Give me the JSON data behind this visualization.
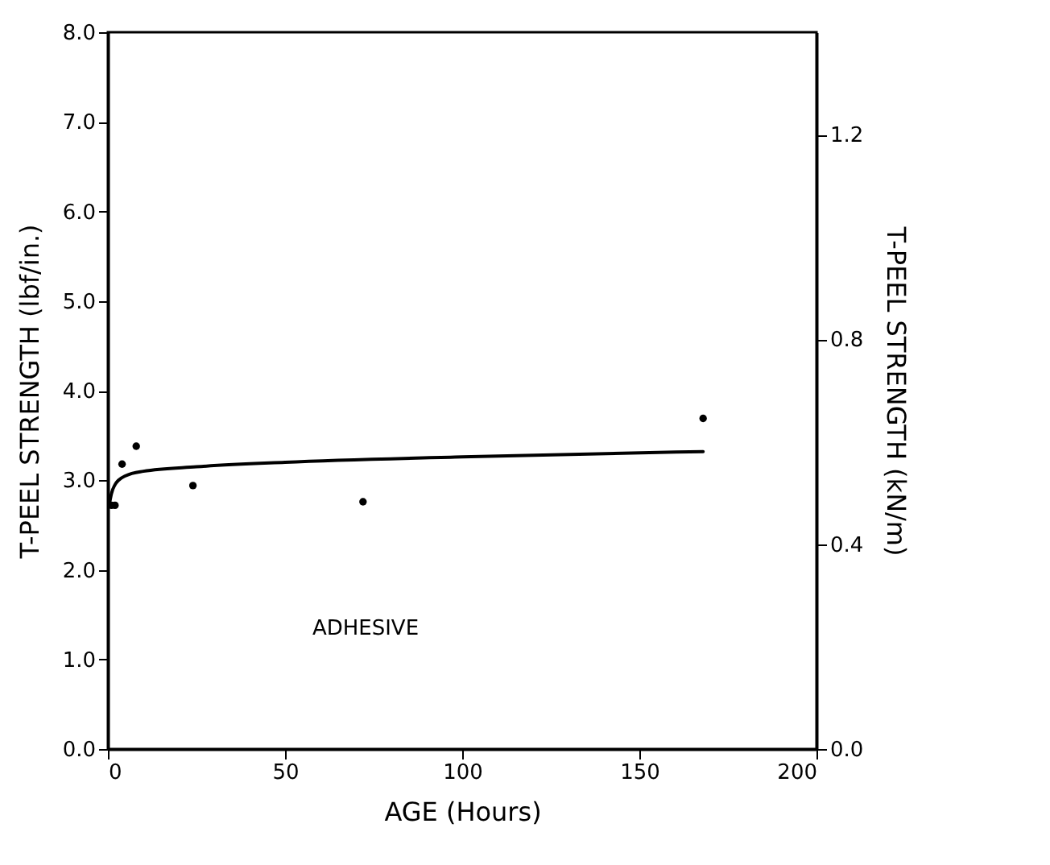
{
  "chart_data": {
    "type": "scatter",
    "xlabel": "AGE (Hours)",
    "ylabel": "T-PEEL STRENGTH (lbf/in.)",
    "y2label": "T-PEEL STRENGTH (kN/m)",
    "x": [
      1,
      2,
      4,
      8,
      24,
      72,
      168
    ],
    "series": [
      {
        "color": "#000000",
        "marker": "circle",
        "values": [
          2.72,
          2.72,
          3.18,
          3.38,
          2.94,
          2.76,
          3.69
        ]
      },
      {
        "type": "line",
        "color": "#000000",
        "line_style": "solid",
        "x": [
          0.5,
          1,
          2,
          3,
          5,
          10,
          25,
          50,
          100,
          168
        ],
        "values": [
          2.75,
          2.85,
          2.95,
          3.0,
          3.05,
          3.1,
          3.15,
          3.2,
          3.26,
          3.32
        ]
      }
    ],
    "xlim": [
      0,
      200
    ],
    "xticks": [
      0,
      50,
      100,
      150,
      200
    ],
    "ylim": [
      0,
      8
    ],
    "yticks": [
      {
        "value": 0,
        "label": "0.0"
      },
      {
        "value": 1,
        "label": "1.0"
      },
      {
        "value": 2,
        "label": "2.0"
      },
      {
        "value": 3,
        "label": "3.0"
      },
      {
        "value": 4,
        "label": "4.0"
      },
      {
        "value": 5,
        "label": "5.0"
      },
      {
        "value": 6,
        "label": "6.0"
      },
      {
        "value": 7,
        "label": "7.0"
      },
      {
        "value": 8,
        "label": "8.0"
      }
    ],
    "y2lim": [
      0,
      1.4
    ],
    "y2ticks": [
      {
        "value": 0,
        "label": "0.0"
      },
      {
        "value": 0.4,
        "label": "0.4"
      },
      {
        "value": 0.8,
        "label": "0.8"
      },
      {
        "value": 1.2,
        "label": "1.2"
      }
    ],
    "annotations": [
      "ADHESIVE"
    ],
    "grid": false
  }
}
